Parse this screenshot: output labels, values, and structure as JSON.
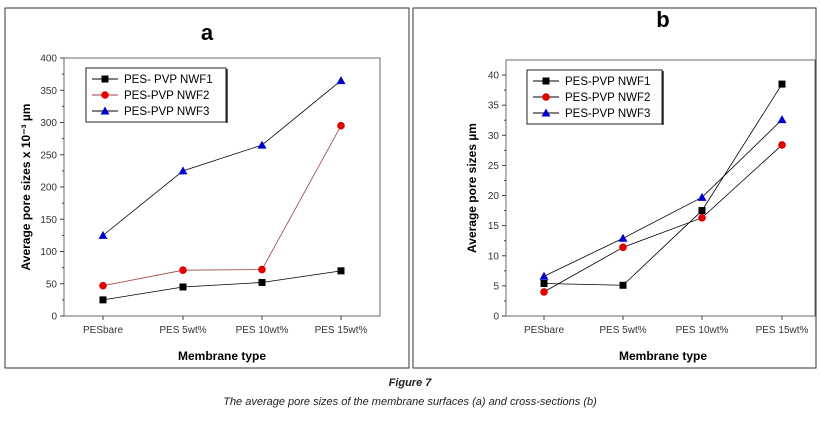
{
  "figure": {
    "label": "Figure 7",
    "caption": "The average pore sizes of the membrane surfaces (a) and cross-sections (b)"
  },
  "chart_data": [
    {
      "type": "line",
      "title": "a",
      "xlabel": "Membrane type",
      "ylabel": "Average pore sizes x 10⁻³ µm",
      "categories": [
        "PESbare",
        "PES 5wt%",
        "PES 10wt%",
        "PES 15wt%"
      ],
      "ylim": [
        0,
        400
      ],
      "yticks": [
        0,
        50,
        100,
        150,
        200,
        250,
        300,
        350,
        400
      ],
      "legend": "top-left",
      "grid": false,
      "series": [
        {
          "name": "PES- PVP NWF1",
          "marker": "square",
          "color": "#000000",
          "line_color": "#000000",
          "values": [
            25,
            45,
            52,
            70
          ]
        },
        {
          "name": "PES-PVP NWF2",
          "marker": "circle",
          "color": "#e00000",
          "line_color": "#a04040",
          "values": [
            47,
            71,
            72,
            295
          ]
        },
        {
          "name": "PES-PVP NWF3",
          "marker": "triangle",
          "color": "#0000cc",
          "line_color": "#000000",
          "values": [
            125,
            225,
            265,
            365
          ]
        }
      ]
    },
    {
      "type": "line",
      "title": "b",
      "xlabel": "Membrane type",
      "ylabel": "Average pore sizes  µm",
      "categories": [
        "PESbare",
        "PES 5wt%",
        "PES 10wt%",
        "PES 15wt%"
      ],
      "ylim": [
        0,
        42.5
      ],
      "yticks": [
        0,
        5,
        10,
        15,
        20,
        25,
        30,
        35,
        40
      ],
      "legend": "top-left",
      "grid": false,
      "series": [
        {
          "name": "PES-PVP NWF1",
          "marker": "square",
          "color": "#000000",
          "line_color": "#000000",
          "values": [
            5.4,
            5.1,
            17.5,
            38.5
          ]
        },
        {
          "name": "PES-PVP NWF2",
          "marker": "circle",
          "color": "#e00000",
          "line_color": "#000000",
          "values": [
            4,
            11.4,
            16.3,
            28.4
          ]
        },
        {
          "name": "PES-PVP NWF3",
          "marker": "triangle",
          "color": "#0000cc",
          "line_color": "#000000",
          "values": [
            6.6,
            12.9,
            19.7,
            32.6
          ]
        }
      ]
    }
  ]
}
